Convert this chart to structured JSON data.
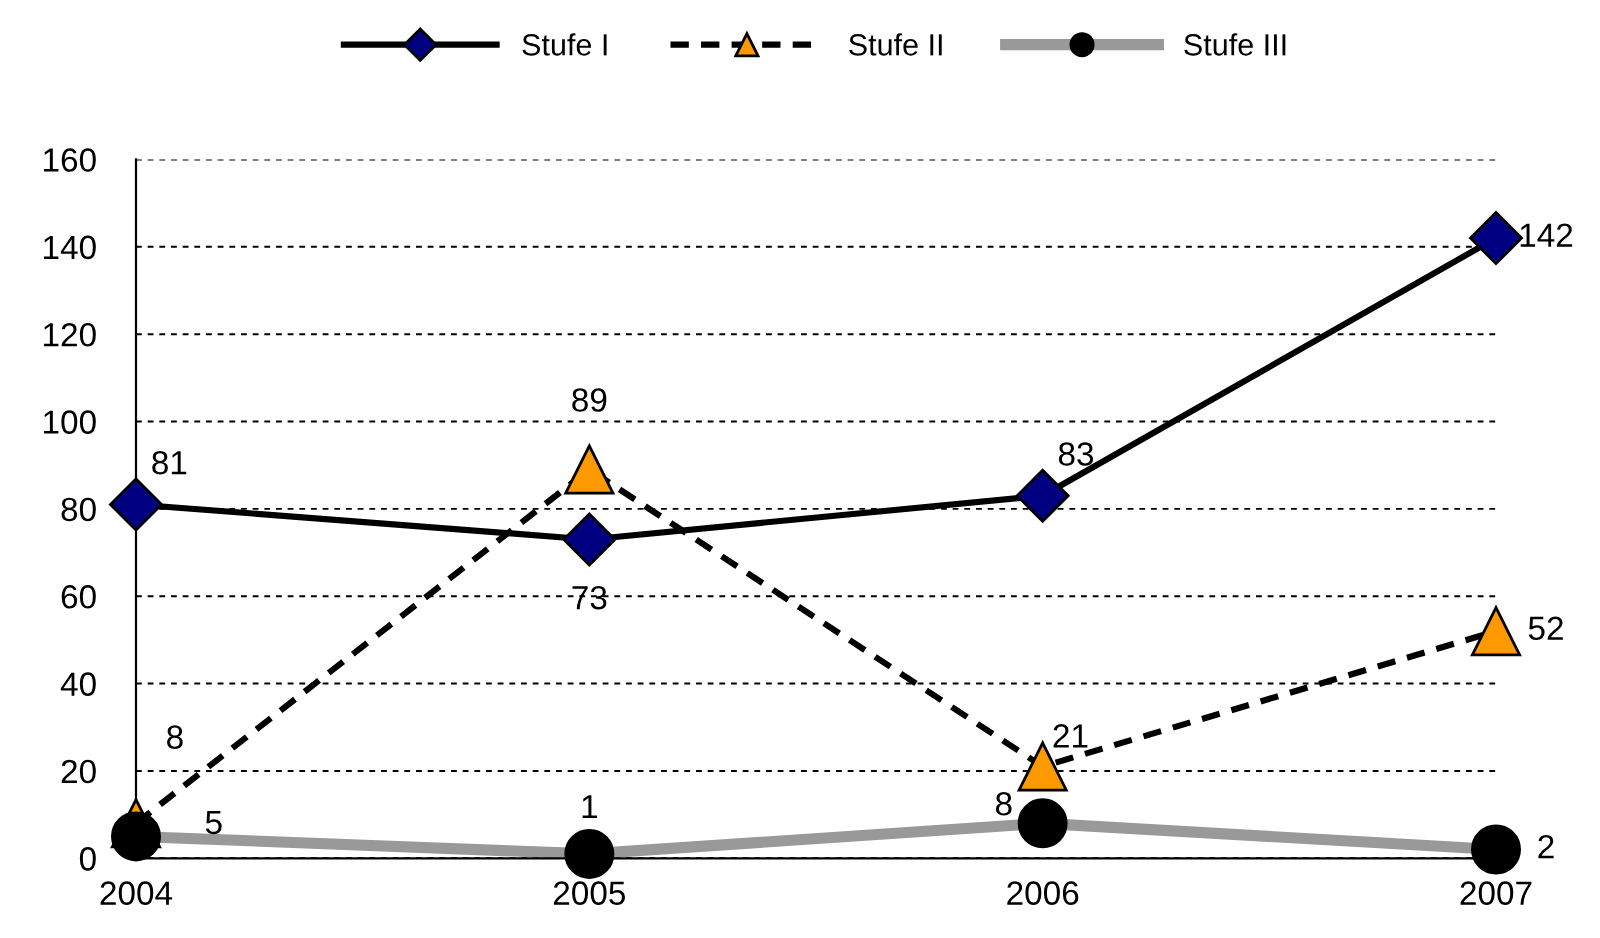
{
  "chart_data": {
    "type": "line",
    "categories": [
      "2004",
      "2005",
      "2006",
      "2007"
    ],
    "series": [
      {
        "name": "Stufe I",
        "color": "#000000",
        "colors": [
          "#000080",
          "#000080",
          "#000080",
          "#000080"
        ],
        "marker": "diamond",
        "line_style": "solid",
        "values": [
          81,
          73,
          83,
          142
        ]
      },
      {
        "name": "Stufe II",
        "color": "#000000",
        "colors": [
          "#ff9900",
          "#ff9900",
          "#ff9900",
          "#ff9900"
        ],
        "marker": "triangle",
        "line_style": "dashed",
        "values": [
          8,
          89,
          21,
          52
        ]
      },
      {
        "name": "Stufe III",
        "color": "#999999",
        "colors": [
          "#000000",
          "#000000",
          "#000000",
          "#000000"
        ],
        "marker": "circle",
        "line_style": "solid",
        "values": [
          5,
          1,
          8,
          2
        ]
      }
    ],
    "ylim": [
      0,
      160
    ],
    "yticks": [
      0,
      20,
      40,
      60,
      80,
      100,
      120,
      140,
      160
    ],
    "grid": "y",
    "legend": "top",
    "data_labels": true
  }
}
